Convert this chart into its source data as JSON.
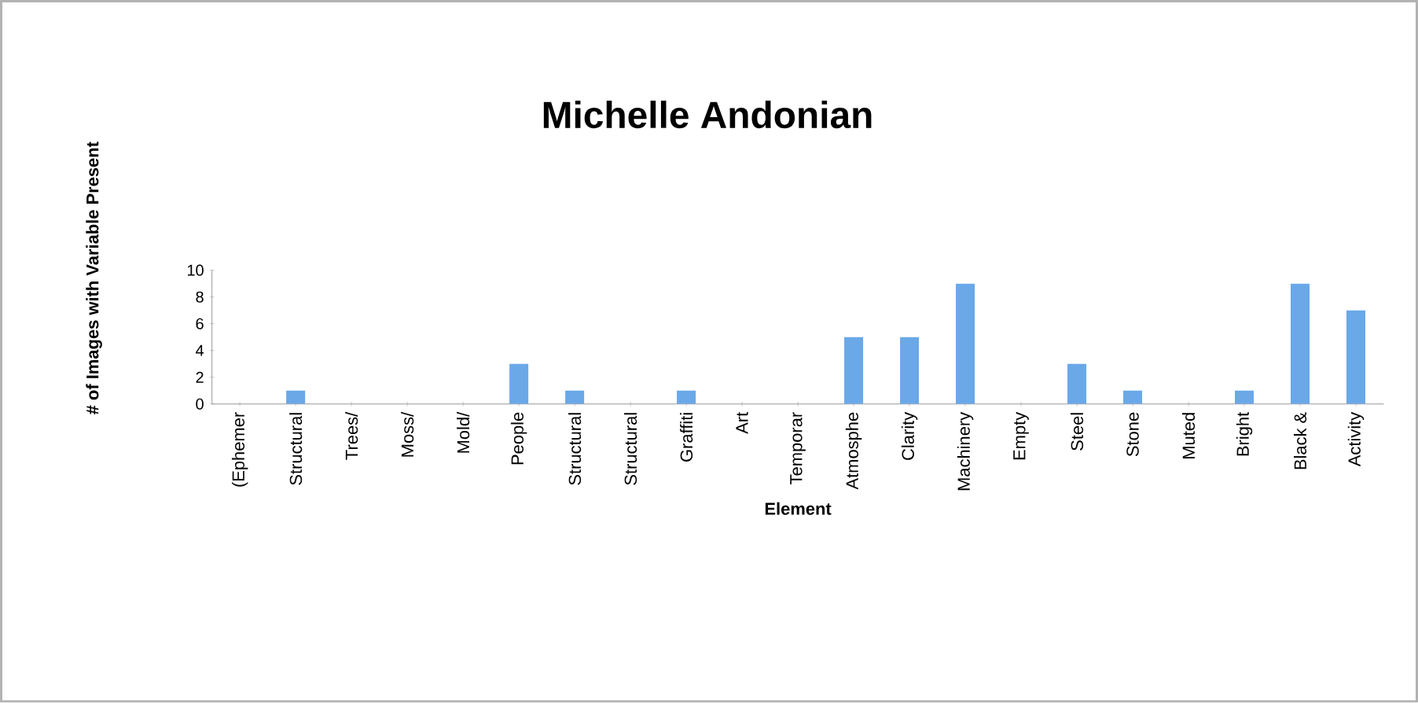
{
  "chart_data": {
    "type": "bar",
    "title": "Michelle Andonian",
    "xlabel": "Element",
    "ylabel": "# of Images with Variable Present",
    "categories": [
      "(Ephemer",
      "Structural",
      "Trees/",
      "Moss/",
      "Mold/",
      "People",
      "Structural",
      "Structural",
      "Graffiti",
      "Art",
      "Temporar",
      "Atmosphe",
      "Clarity",
      "Machinery",
      "Empty",
      "Steel",
      "Stone",
      "Muted",
      "Bright",
      "Black &",
      "Activity"
    ],
    "values": [
      0,
      1,
      0,
      0,
      0,
      3,
      1,
      0,
      1,
      0,
      0,
      5,
      5,
      9,
      0,
      3,
      1,
      0,
      1,
      9,
      7
    ],
    "color": "#6aa8e8",
    "ylim": [
      0,
      10
    ],
    "yticks": [
      0,
      2,
      4,
      6,
      8,
      10
    ],
    "grid": false
  }
}
